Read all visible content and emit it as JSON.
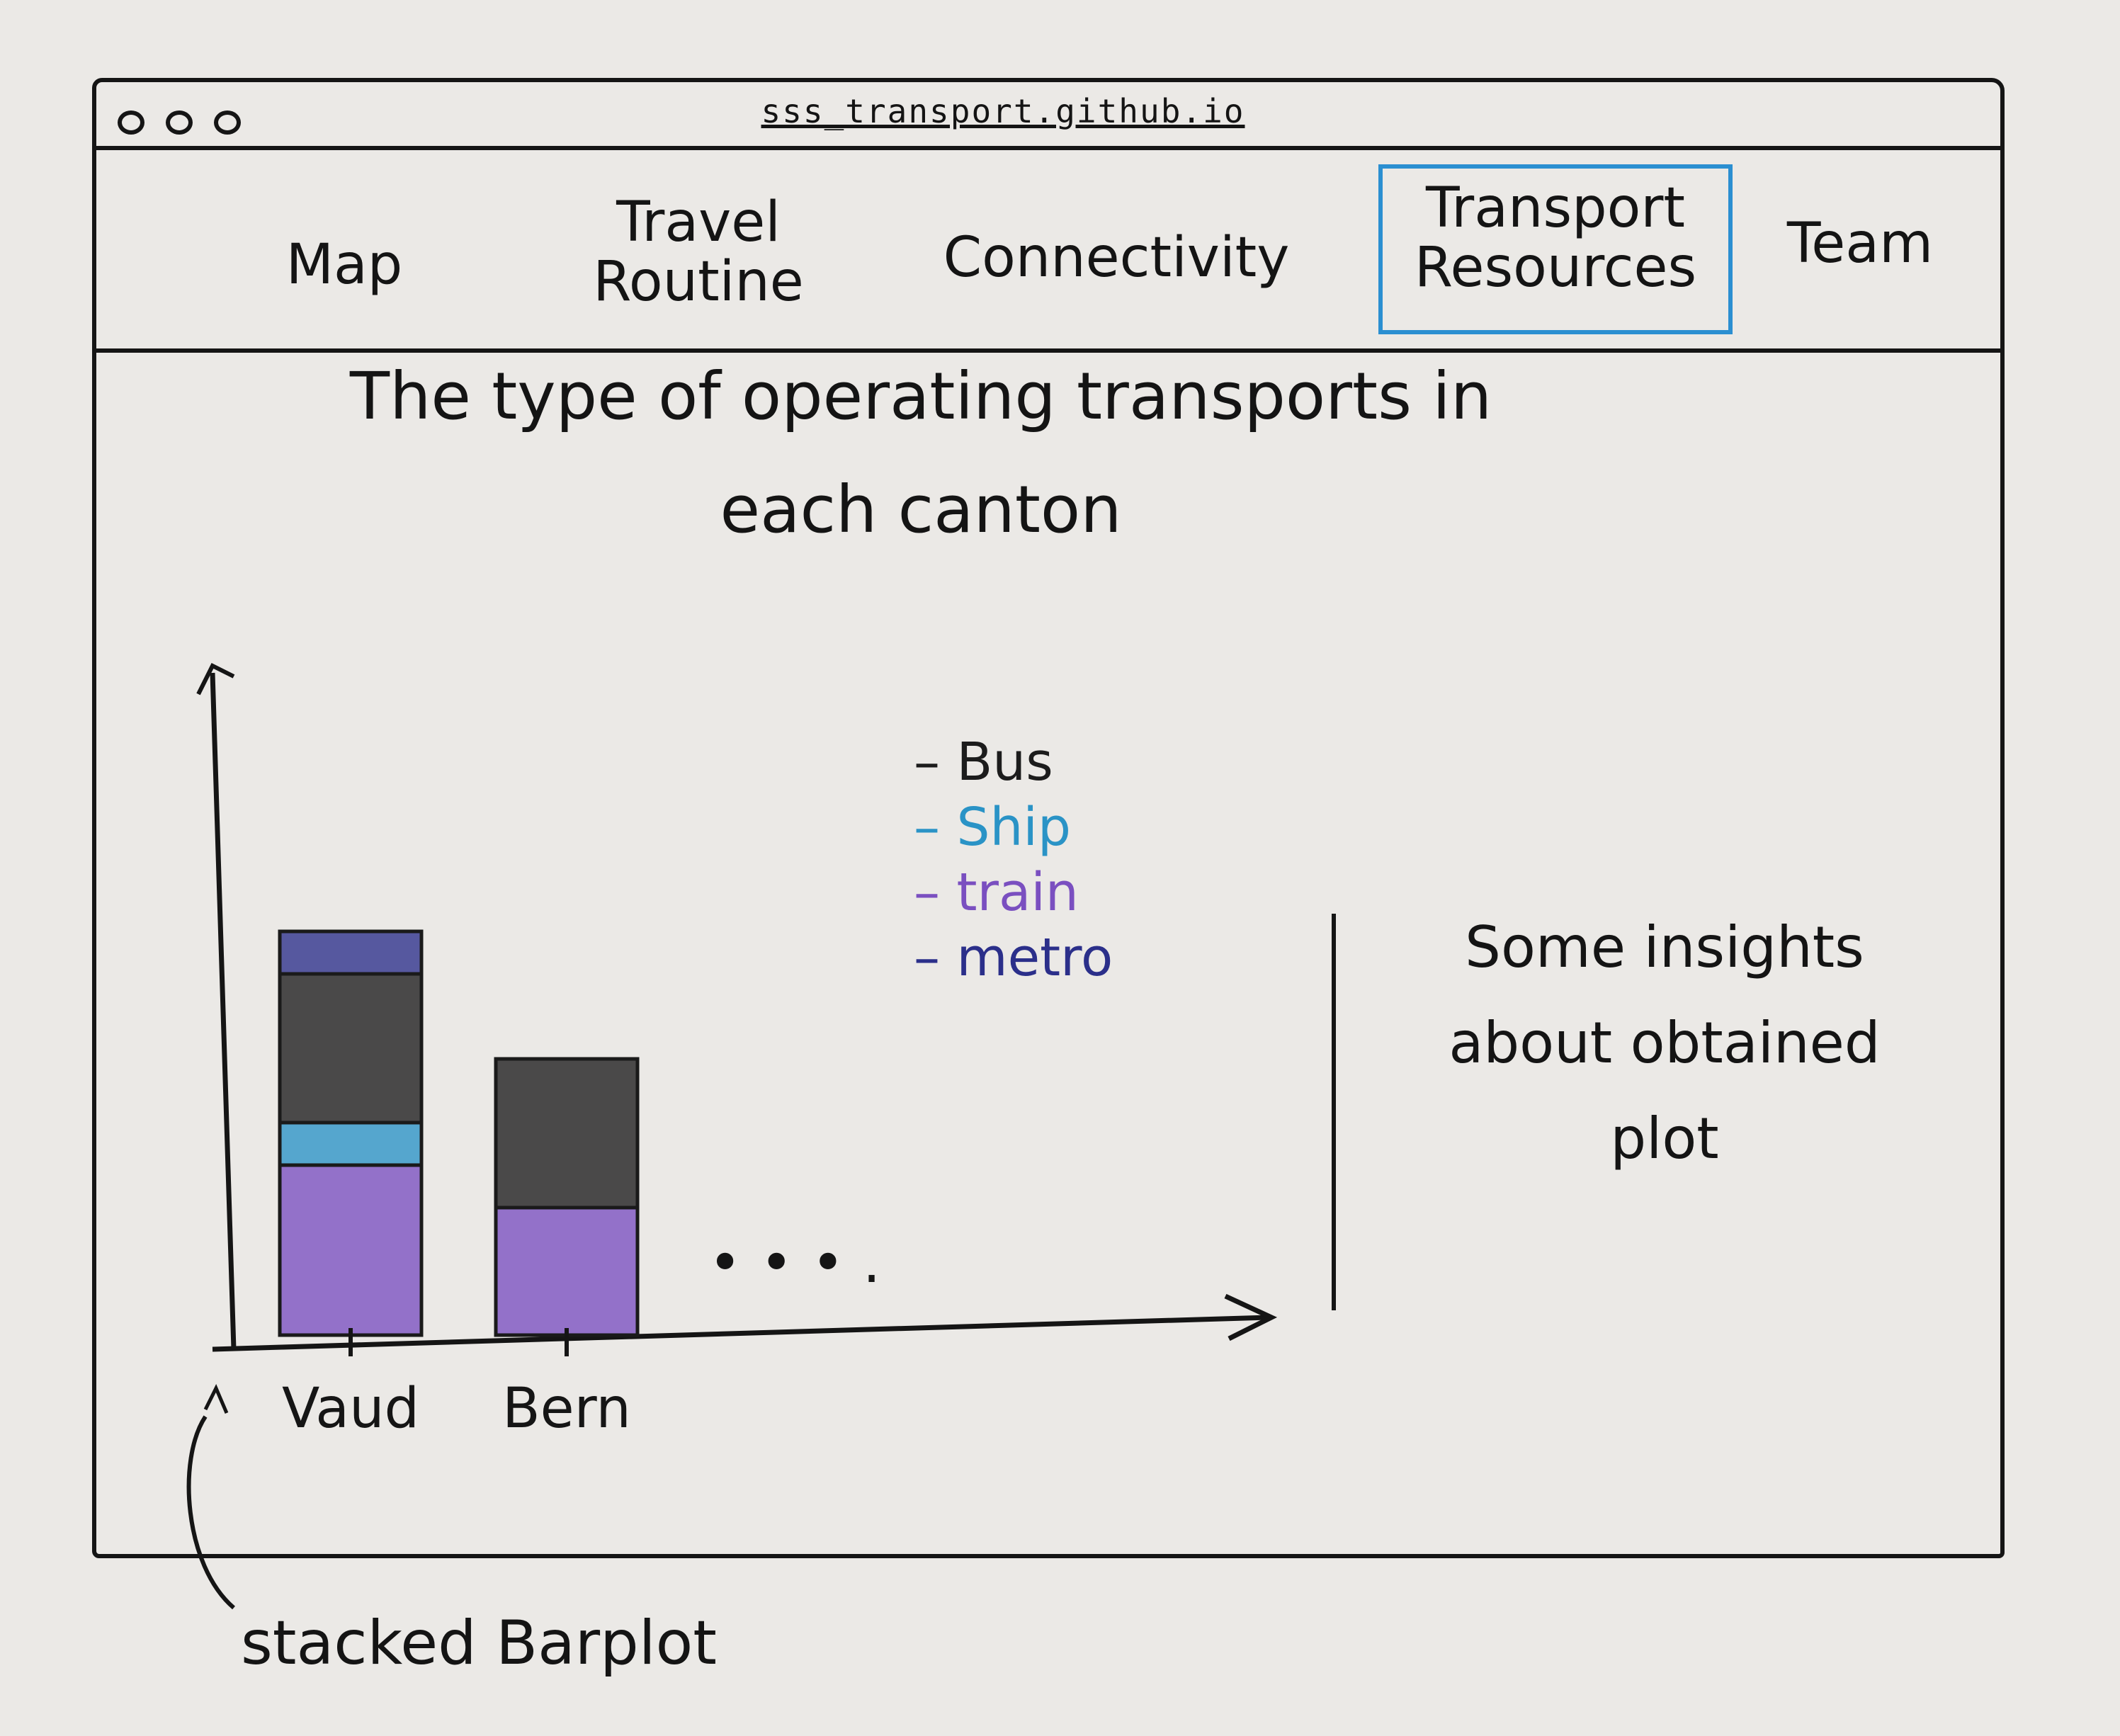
{
  "browser": {
    "url": "sss_transport.github.io"
  },
  "nav": {
    "tabs": [
      {
        "label": "Map"
      },
      {
        "label": "Travel\nRoutine"
      },
      {
        "label": "Connectivity"
      },
      {
        "label": "Transport\nResources",
        "active": true
      },
      {
        "label": "Team"
      }
    ]
  },
  "main": {
    "title": "The type of operating transports in\neach canton",
    "insights": "Some insights\nabout obtained\nplot",
    "annotation": "stacked Barplot"
  },
  "colors": {
    "active_tab": "#2b8fd1",
    "bus": "#1c1c1c",
    "ship": "#2a93c6",
    "train": "#7a4fc0",
    "metro": "#2b2f8a"
  },
  "chart_data": {
    "type": "bar",
    "stacked": true,
    "categories": [
      "Vaud",
      "Bern"
    ],
    "series": [
      {
        "name": "train",
        "values": [
          4,
          3
        ]
      },
      {
        "name": "Ship",
        "values": [
          1,
          0
        ]
      },
      {
        "name": "Bus",
        "values": [
          3.5,
          3.5
        ]
      },
      {
        "name": "metro",
        "values": [
          1,
          0
        ]
      }
    ],
    "legend": [
      "Bus",
      "Ship",
      "train",
      "metro"
    ],
    "legend_placement": "top-center",
    "more_categories_indicator": "• • • ."
  }
}
